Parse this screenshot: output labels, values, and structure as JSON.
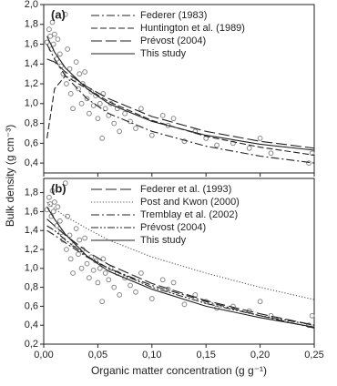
{
  "chart_data": [
    {
      "type": "scatter",
      "panel_label": "(a)",
      "ylabel": "Bulk density (g cm⁻³)",
      "xlim": [
        0,
        0.25
      ],
      "ylim": [
        0.3,
        2.0
      ],
      "yticks": [
        {
          "value": 0.4,
          "label": "0,4"
        },
        {
          "value": 0.6,
          "label": "0,6"
        },
        {
          "value": 0.8,
          "label": "0,8"
        },
        {
          "value": 1.0,
          "label": "1,0"
        },
        {
          "value": 1.2,
          "label": "1,2"
        },
        {
          "value": 1.4,
          "label": "1,4"
        },
        {
          "value": 1.6,
          "label": "1,6"
        },
        {
          "value": 1.8,
          "label": "1,8"
        },
        {
          "value": 2.0,
          "label": "2,0"
        }
      ],
      "legend": "upper right",
      "points": {
        "color": "#888888",
        "x": [
          0.003,
          0.005,
          0.006,
          0.007,
          0.008,
          0.009,
          0.01,
          0.012,
          0.013,
          0.015,
          0.016,
          0.018,
          0.02,
          0.021,
          0.022,
          0.024,
          0.025,
          0.027,
          0.028,
          0.03,
          0.032,
          0.033,
          0.035,
          0.036,
          0.038,
          0.04,
          0.042,
          0.044,
          0.046,
          0.048,
          0.05,
          0.052,
          0.054,
          0.055,
          0.057,
          0.06,
          0.062,
          0.065,
          0.068,
          0.07,
          0.075,
          0.08,
          0.085,
          0.09,
          0.1,
          0.11,
          0.115,
          0.12,
          0.13,
          0.14,
          0.15,
          0.16,
          0.175,
          0.19,
          0.2,
          0.21,
          0.245,
          0.248
        ],
        "y": [
          1.62,
          1.75,
          1.68,
          1.55,
          1.82,
          1.6,
          1.7,
          1.45,
          1.65,
          1.5,
          1.38,
          1.3,
          1.9,
          1.2,
          1.55,
          1.35,
          1.1,
          0.95,
          1.25,
          1.42,
          1.15,
          1.3,
          1.0,
          1.2,
          1.32,
          1.05,
          0.9,
          1.12,
          0.98,
          1.08,
          0.85,
          1.0,
          0.65,
          1.1,
          0.95,
          0.88,
          1.0,
          0.8,
          0.95,
          0.72,
          0.9,
          0.82,
          0.75,
          0.95,
          0.68,
          0.88,
          0.78,
          0.85,
          0.62,
          0.72,
          0.65,
          0.58,
          0.6,
          0.55,
          0.65,
          0.5,
          0.4,
          0.5
        ]
      },
      "curve_x": [
        0.003,
        0.01,
        0.02,
        0.04,
        0.06,
        0.1,
        0.15,
        0.2,
        0.25
      ],
      "series": [
        {
          "name": "Federer (1983)",
          "color": "#222222",
          "dash": "dash-dot",
          "values": [
            1.6,
            1.45,
            1.28,
            1.05,
            0.9,
            0.72,
            0.57,
            0.47,
            0.4
          ]
        },
        {
          "name": "Huntington et al. (1989)",
          "color": "#222222",
          "dash": "dash",
          "values": [
            0.65,
            1.15,
            1.28,
            1.15,
            1.02,
            0.83,
            0.67,
            0.56,
            0.48
          ]
        },
        {
          "name": "Prévost (2004)",
          "color": "#222222",
          "dash": "long-dash",
          "values": [
            1.45,
            1.42,
            1.32,
            1.17,
            1.05,
            0.87,
            0.72,
            0.62,
            0.55
          ]
        },
        {
          "name": "This study",
          "color": "#222222",
          "dash": "solid",
          "values": [
            1.68,
            1.52,
            1.36,
            1.15,
            1.0,
            0.82,
            0.68,
            0.59,
            0.53
          ]
        }
      ]
    },
    {
      "type": "scatter",
      "panel_label": "(b)",
      "xlabel": "Organic matter concentration (g g⁻¹)",
      "xlim": [
        0,
        0.25
      ],
      "ylim": [
        0.2,
        1.95
      ],
      "xticks": [
        {
          "value": 0,
          "label": "0,00"
        },
        {
          "value": 0.05,
          "label": "0,05"
        },
        {
          "value": 0.1,
          "label": "0,10"
        },
        {
          "value": 0.15,
          "label": "0,15"
        },
        {
          "value": 0.2,
          "label": "0,20"
        },
        {
          "value": 0.25,
          "label": "0,25"
        }
      ],
      "yticks": [
        {
          "value": 0.2,
          "label": "0,2"
        },
        {
          "value": 0.4,
          "label": "0,4"
        },
        {
          "value": 0.6,
          "label": "0,6"
        },
        {
          "value": 0.8,
          "label": "0,8"
        },
        {
          "value": 1.0,
          "label": "1,0"
        },
        {
          "value": 1.2,
          "label": "1,2"
        },
        {
          "value": 1.4,
          "label": "1,4"
        },
        {
          "value": 1.6,
          "label": "1,6"
        },
        {
          "value": 1.8,
          "label": "1,8"
        }
      ],
      "legend": "upper right",
      "points": {
        "color": "#888888",
        "x": [
          0.003,
          0.005,
          0.006,
          0.007,
          0.008,
          0.009,
          0.01,
          0.012,
          0.013,
          0.015,
          0.016,
          0.018,
          0.02,
          0.021,
          0.022,
          0.024,
          0.025,
          0.027,
          0.028,
          0.03,
          0.032,
          0.033,
          0.035,
          0.036,
          0.038,
          0.04,
          0.042,
          0.044,
          0.046,
          0.048,
          0.05,
          0.052,
          0.054,
          0.055,
          0.057,
          0.06,
          0.062,
          0.065,
          0.068,
          0.07,
          0.075,
          0.08,
          0.085,
          0.09,
          0.1,
          0.11,
          0.115,
          0.12,
          0.13,
          0.14,
          0.15,
          0.16,
          0.175,
          0.19,
          0.2,
          0.21,
          0.245,
          0.248
        ],
        "y": [
          1.62,
          1.75,
          1.68,
          1.55,
          1.82,
          1.6,
          1.7,
          1.45,
          1.65,
          1.5,
          1.38,
          1.3,
          1.9,
          1.2,
          1.55,
          1.35,
          1.1,
          0.95,
          1.25,
          1.42,
          1.15,
          1.3,
          1.0,
          1.2,
          1.32,
          1.05,
          0.9,
          1.12,
          0.98,
          1.08,
          0.85,
          1.0,
          0.65,
          1.1,
          0.95,
          0.88,
          1.0,
          0.8,
          0.95,
          0.72,
          0.9,
          0.82,
          0.75,
          0.95,
          0.68,
          0.88,
          0.78,
          0.85,
          0.62,
          0.72,
          0.65,
          0.58,
          0.6,
          0.55,
          0.65,
          0.5,
          0.4,
          0.5
        ]
      },
      "curve_x": [
        0.003,
        0.01,
        0.02,
        0.04,
        0.06,
        0.1,
        0.15,
        0.2,
        0.25
      ],
      "series": [
        {
          "name": "Federer et al. (1993)",
          "color": "#222222",
          "dash": "long-dash",
          "values": [
            1.52,
            1.45,
            1.35,
            1.18,
            1.04,
            0.84,
            0.66,
            0.52,
            0.4
          ]
        },
        {
          "name": "Post and Kwon (2000)",
          "color": "#555555",
          "dash": "dotted",
          "values": [
            1.7,
            1.63,
            1.55,
            1.42,
            1.3,
            1.12,
            0.95,
            0.8,
            0.67
          ]
        },
        {
          "name": "Tremblay et al. (2002)",
          "color": "#222222",
          "dash": "dash-dot",
          "values": [
            1.4,
            1.35,
            1.27,
            1.12,
            1.0,
            0.82,
            0.65,
            0.5,
            0.37
          ]
        },
        {
          "name": "Prévost (2004)",
          "color": "#222222",
          "dash": "dash-dot-dot",
          "values": [
            1.45,
            1.4,
            1.3,
            1.13,
            1.0,
            0.8,
            0.63,
            0.5,
            0.4
          ]
        },
        {
          "name": "This study",
          "color": "#222222",
          "dash": "solid",
          "values": [
            1.65,
            1.52,
            1.36,
            1.13,
            0.97,
            0.78,
            0.6,
            0.48,
            0.38
          ]
        }
      ]
    }
  ]
}
